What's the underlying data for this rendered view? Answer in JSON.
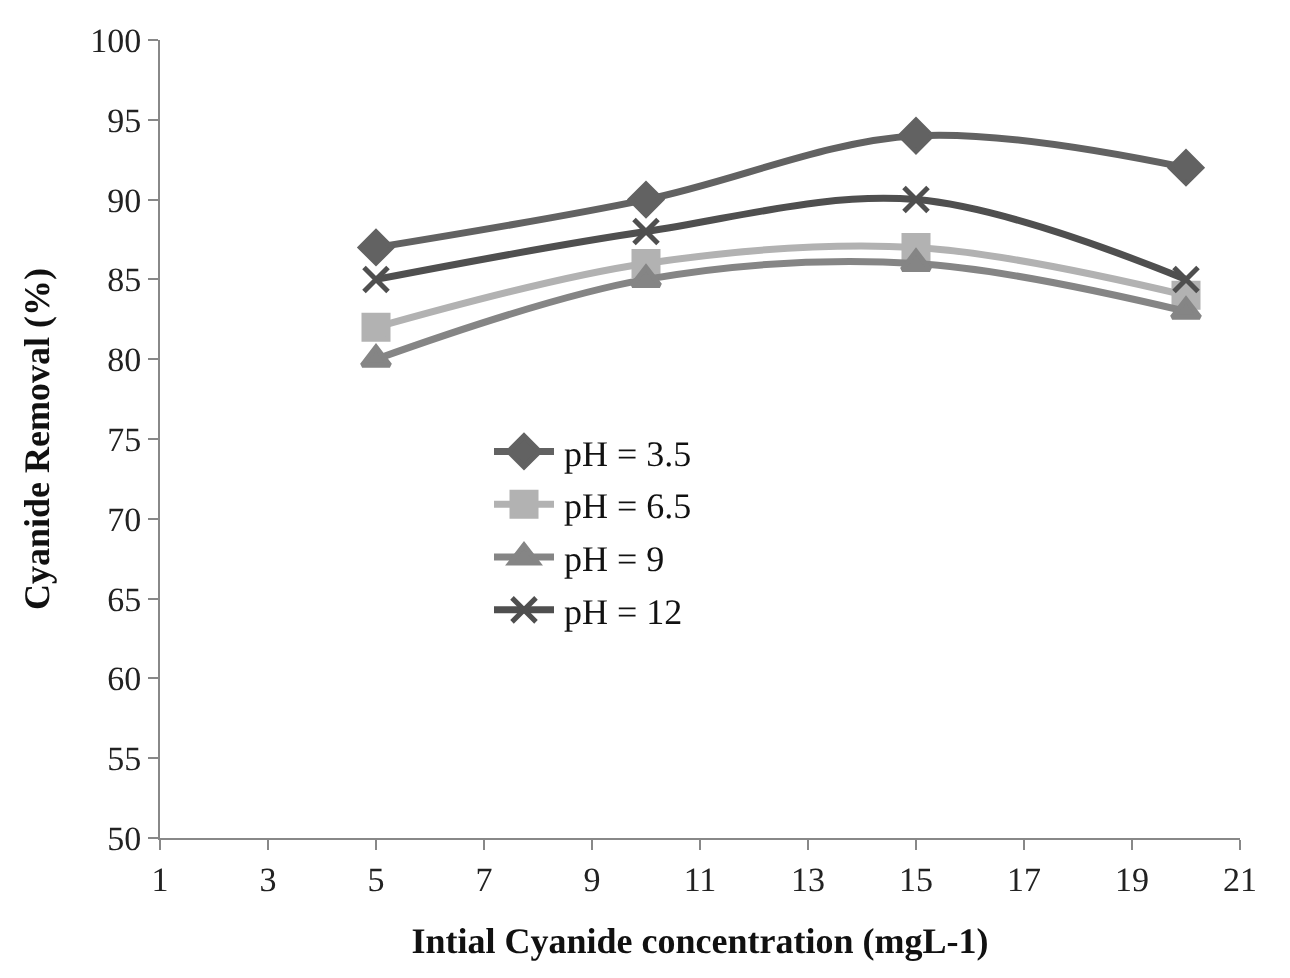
{
  "chart_data": {
    "type": "line",
    "xlabel": "Intial Cyanide concentration (mgL-1)",
    "ylabel": "Cyanide Removal (%)",
    "x": [
      5,
      10,
      15,
      20
    ],
    "series": [
      {
        "name": "pH = 3.5",
        "color": "#626262",
        "marker": "diamond",
        "values": [
          87,
          90,
          94,
          92
        ]
      },
      {
        "name": "pH = 6.5",
        "color": "#b2b2b2",
        "marker": "square",
        "values": [
          82,
          86,
          87,
          84
        ]
      },
      {
        "name": "pH = 9",
        "color": "#858585",
        "marker": "triangle",
        "values": [
          80,
          85,
          86,
          83
        ]
      },
      {
        "name": "pH = 12",
        "color": "#4f4f4f",
        "marker": "cross",
        "values": [
          85,
          88,
          90,
          85
        ]
      }
    ],
    "xlim": [
      1,
      21
    ],
    "xticks": [
      1,
      3,
      5,
      7,
      9,
      11,
      13,
      15,
      17,
      19,
      21
    ],
    "ylim": [
      50,
      100
    ],
    "yticks": [
      50,
      55,
      60,
      65,
      70,
      75,
      80,
      85,
      90,
      95,
      100
    ],
    "legend": "center"
  }
}
